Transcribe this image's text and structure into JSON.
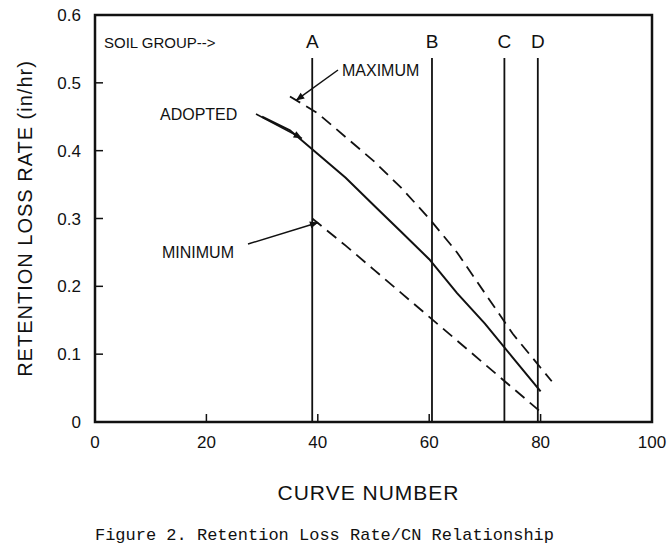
{
  "chart_data": {
    "type": "line",
    "title": "Figure 2.  Retention Loss Rate/CN Relationship",
    "x_label": "CURVE NUMBER",
    "y_label": "RETENTION LOSS RATE (in/hr)",
    "xlim": [
      0,
      100
    ],
    "ylim": [
      0,
      0.6
    ],
    "xticks": [
      0,
      20,
      40,
      60,
      80,
      100
    ],
    "yticks": [
      0,
      0.1,
      0.2,
      0.3,
      0.4,
      0.5,
      0.6
    ],
    "grid": false,
    "series": [
      {
        "name": "ADOPTED",
        "color": "#111111",
        "line_style": "solid",
        "x": [
          30,
          35,
          40,
          45,
          50,
          55,
          60,
          65,
          70,
          75,
          80
        ],
        "values": [
          0.45,
          0.43,
          0.395,
          0.36,
          0.32,
          0.28,
          0.24,
          0.19,
          0.145,
          0.095,
          0.045
        ]
      },
      {
        "name": "MAXIMUM",
        "color": "#111111",
        "line_style": "dashed",
        "x": [
          35,
          40,
          45,
          50,
          55,
          60,
          65,
          70,
          75,
          80,
          82
        ],
        "values": [
          0.48,
          0.455,
          0.42,
          0.385,
          0.345,
          0.3,
          0.25,
          0.19,
          0.13,
          0.08,
          0.06
        ]
      },
      {
        "name": "MINIMUM",
        "color": "#111111",
        "line_style": "dashed",
        "x": [
          39,
          45,
          50,
          55,
          60,
          65,
          70,
          75,
          80
        ],
        "values": [
          0.3,
          0.26,
          0.225,
          0.19,
          0.155,
          0.12,
          0.085,
          0.05,
          0.015
        ]
      }
    ],
    "soil_groups": {
      "label": "SOIL GROUP-->",
      "groups": [
        {
          "label": "A",
          "x": 39
        },
        {
          "label": "B",
          "x": 60.5
        },
        {
          "label": "C",
          "x": 73.5
        },
        {
          "label": "D",
          "x": 79.5
        }
      ]
    }
  }
}
